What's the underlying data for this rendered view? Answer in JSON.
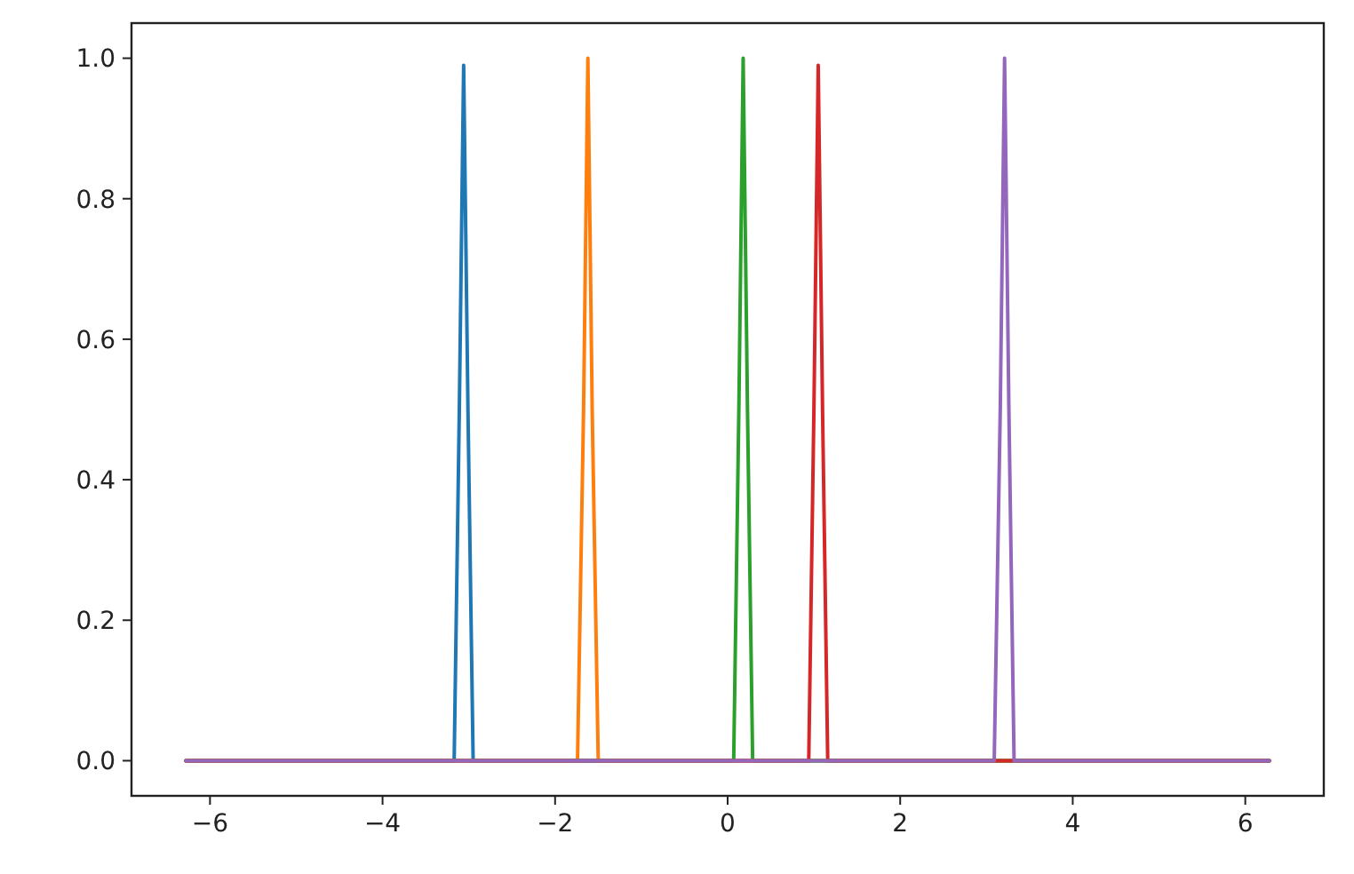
{
  "chart_data": {
    "type": "line",
    "xlim": [
      -6.91,
      6.91
    ],
    "ylim": [
      -0.05,
      1.05
    ],
    "xticks": [
      {
        "value": -6,
        "label": "−6"
      },
      {
        "value": -4,
        "label": "−4"
      },
      {
        "value": -2,
        "label": "−2"
      },
      0,
      2,
      4,
      6
    ],
    "yticks": [
      {
        "value": 0,
        "label": "0.0"
      },
      {
        "value": 0.2,
        "label": "0.2"
      },
      {
        "value": 0.4,
        "label": "0.4"
      },
      {
        "value": 0.6,
        "label": "0.6"
      },
      {
        "value": 0.8,
        "label": "0.8"
      },
      {
        "value": 1,
        "label": "1.0"
      }
    ],
    "grid": false,
    "marker": "none",
    "line_style": "solid",
    "series": [
      {
        "color": "#1f77b4",
        "x": [
          -6.28,
          -3.17,
          -3.11,
          -3.06,
          -3.01,
          -2.95,
          6.28
        ],
        "values": [
          0,
          0,
          0.5,
          0.99,
          0.5,
          0,
          0
        ]
      },
      {
        "color": "#ff7f0e",
        "x": [
          -6.28,
          -1.74,
          -1.67,
          -1.62,
          -1.57,
          -1.5,
          6.28
        ],
        "values": [
          0,
          0,
          0.5,
          1.0,
          0.5,
          0,
          0
        ]
      },
      {
        "color": "#2ca02c",
        "x": [
          -6.28,
          0.07,
          0.13,
          0.18,
          0.23,
          0.29,
          6.28
        ],
        "values": [
          0,
          0,
          0.5,
          1.0,
          0.5,
          0,
          0
        ]
      },
      {
        "color": "#d62728",
        "x": [
          -6.28,
          0.94,
          1.0,
          1.05,
          1.1,
          1.16,
          6.28
        ],
        "values": [
          0,
          0,
          0.5,
          0.99,
          0.5,
          0,
          0
        ]
      },
      {
        "color": "#9467bd",
        "x": [
          -6.28,
          3.09,
          3.16,
          3.21,
          3.26,
          3.32,
          6.28
        ],
        "values": [
          0,
          0,
          0.5,
          1.0,
          0.5,
          0,
          0
        ]
      }
    ]
  }
}
